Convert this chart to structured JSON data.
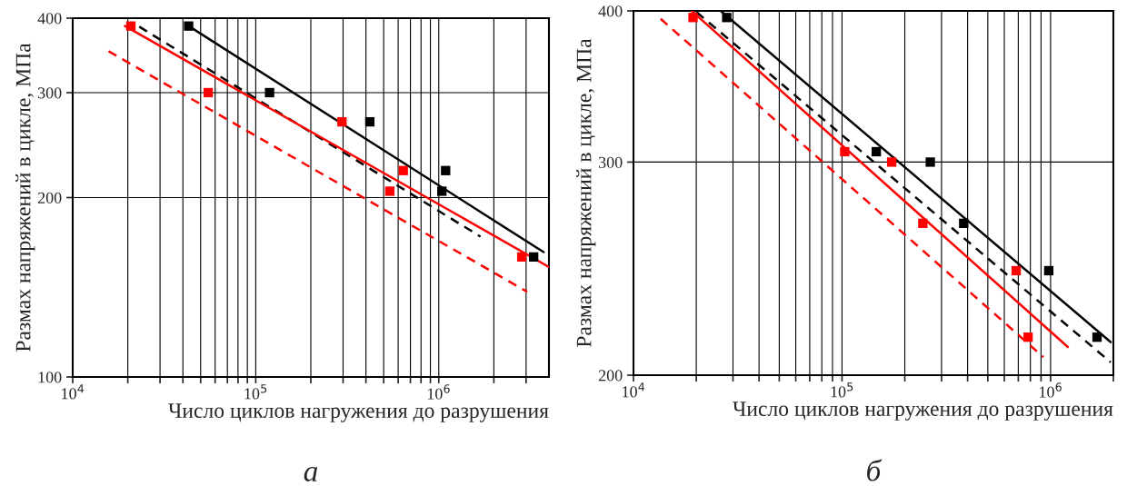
{
  "chart_data": [
    {
      "type": "scatter",
      "xlabel": "Число циклов нагружения до разрушения",
      "ylabel": "Размах напряжений в цикле, МПа",
      "log": "xy",
      "grid": true,
      "legend": false,
      "xlim": [
        10000,
        4000000
      ],
      "ylim": [
        100,
        400
      ],
      "xticks": [
        {
          "value": 10000,
          "label": "10$^{4}$"
        },
        {
          "value": 20000,
          "label": null
        },
        {
          "value": 30000,
          "label": null
        },
        {
          "value": 40000,
          "label": null
        },
        {
          "value": 50000,
          "label": null
        },
        {
          "value": 60000,
          "label": null
        },
        {
          "value": 70000,
          "label": null
        },
        {
          "value": 80000,
          "label": null
        },
        {
          "value": 90000,
          "label": null
        },
        {
          "value": 100000,
          "label": "10$^{5}$"
        },
        {
          "value": 200000,
          "label": null
        },
        {
          "value": 300000,
          "label": null
        },
        {
          "value": 400000,
          "label": null
        },
        {
          "value": 500000,
          "label": null
        },
        {
          "value": 600000,
          "label": null
        },
        {
          "value": 700000,
          "label": null
        },
        {
          "value": 800000,
          "label": null
        },
        {
          "value": 900000,
          "label": null
        },
        {
          "value": 1000000,
          "label": "10$^{6}$"
        },
        {
          "value": 2000000,
          "label": null
        },
        {
          "value": 3000000,
          "label": null
        }
      ],
      "yticks": [
        100,
        200,
        300,
        400
      ],
      "annotations": [
        "а"
      ],
      "series": [
        {
          "marker": "square",
          "color": "#ff0000",
          "x": [
            20800,
            55000,
            296000,
            640000,
            540000,
            2840000
          ],
          "values": [
            388,
            300,
            268,
            222,
            205,
            159
          ]
        },
        {
          "marker": "square",
          "color": "#000000",
          "x": [
            43000,
            119000,
            420000,
            1090000,
            1040000,
            3300000
          ],
          "values": [
            388,
            300,
            268,
            222,
            205,
            159
          ]
        },
        {
          "type": "line",
          "marker": "none",
          "line_style": "solid",
          "color": "#000000",
          "x": [
            43000,
            3740000
          ],
          "values": [
            388,
            162
          ]
        },
        {
          "type": "line",
          "marker": "none",
          "line_style": "dashed",
          "color": "#000000",
          "x": [
            23100,
            1690000
          ],
          "values": [
            387,
            172
          ]
        },
        {
          "type": "line",
          "marker": "none",
          "line_style": "solid",
          "color": "#ff0000",
          "x": [
            19300,
            4000000
          ],
          "values": [
            388,
            153
          ]
        },
        {
          "type": "line",
          "marker": "none",
          "line_style": "dashed",
          "color": "#ff0000",
          "x": [
            15700,
            3040000
          ],
          "values": [
            352,
            139
          ]
        }
      ]
    },
    {
      "type": "scatter",
      "xlabel": "Число циклов нагружения до разрушения",
      "ylabel": "Размах напряжений в цикле, МПа",
      "log": "xy",
      "grid": true,
      "legend": false,
      "xlim": [
        10000,
        2000000
      ],
      "ylim": [
        200,
        400
      ],
      "xticks": [
        {
          "value": 10000,
          "label": "10$^{4}$"
        },
        {
          "value": 20000,
          "label": null
        },
        {
          "value": 30000,
          "label": null
        },
        {
          "value": 40000,
          "label": null
        },
        {
          "value": 50000,
          "label": null
        },
        {
          "value": 60000,
          "label": null
        },
        {
          "value": 70000,
          "label": null
        },
        {
          "value": 80000,
          "label": null
        },
        {
          "value": 90000,
          "label": null
        },
        {
          "value": 100000,
          "label": "10$^{5}$"
        },
        {
          "value": 200000,
          "label": null
        },
        {
          "value": 300000,
          "label": null
        },
        {
          "value": 400000,
          "label": null
        },
        {
          "value": 500000,
          "label": null
        },
        {
          "value": 600000,
          "label": null
        },
        {
          "value": 700000,
          "label": null
        },
        {
          "value": 800000,
          "label": null
        },
        {
          "value": 900000,
          "label": null
        },
        {
          "value": 1000000,
          "label": "10$^{6}$"
        },
        {
          "value": 2000000,
          "label": null
        }
      ],
      "yticks": [
        200,
        300,
        400
      ],
      "annotations": [
        "б"
      ],
      "series": [
        {
          "marker": "square",
          "color": "#ff0000",
          "x": [
            19300,
            103000,
            173000,
            244000,
            684000,
            780000
          ],
          "values": [
            395,
            306,
            300,
            267,
            244,
            215
          ]
        },
        {
          "marker": "square",
          "color": "#000000",
          "x": [
            28000,
            146000,
            265000,
            383000,
            980000,
            1670000
          ],
          "values": [
            395,
            306,
            300,
            267,
            244,
            215
          ]
        },
        {
          "type": "line",
          "marker": "none",
          "line_style": "solid",
          "color": "#000000",
          "x": [
            26200,
            1940000
          ],
          "values": [
            400,
            213
          ]
        },
        {
          "type": "line",
          "marker": "none",
          "line_style": "dashed",
          "color": "#000000",
          "x": [
            20100,
            1940000
          ],
          "values": [
            399,
            205
          ]
        },
        {
          "type": "line",
          "marker": "none",
          "line_style": "solid",
          "color": "#ff0000",
          "x": [
            19000,
            1210000
          ],
          "values": [
            400,
            211
          ]
        },
        {
          "type": "line",
          "marker": "none",
          "line_style": "dashed",
          "color": "#ff0000",
          "x": [
            13500,
            924000
          ],
          "values": [
            394,
            207
          ]
        }
      ]
    }
  ]
}
